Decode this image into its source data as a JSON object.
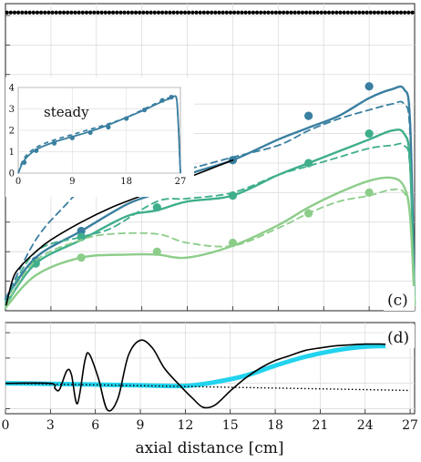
{
  "chart_data": [
    {
      "panel": "c",
      "type": "line",
      "panel_label": "(c)",
      "xlim": [
        0,
        27
      ],
      "ylim": [
        0,
        5.2
      ],
      "grid": true,
      "y_tick_labels_visible": false,
      "colors": {
        "dark_blue": "#3a7fa0",
        "green": "#3fae8c",
        "light_green": "#8dcd8a",
        "black": "#000000"
      },
      "series": [
        {
          "color": "dark_blue",
          "style": "solid",
          "x": [
            0,
            2,
            5,
            8,
            10,
            12,
            15,
            18,
            20,
            22,
            24,
            25.5,
            26.3,
            26.7,
            27
          ],
          "y": [
            0.2,
            0.9,
            1.35,
            1.8,
            2.0,
            2.3,
            2.55,
            2.9,
            3.1,
            3.3,
            3.6,
            3.75,
            3.75,
            3.2,
            0.1
          ]
        },
        {
          "color": "dark_blue",
          "style": "dashed",
          "x": [
            0,
            2,
            4,
            6,
            8,
            10,
            12,
            15,
            18,
            20,
            22,
            24,
            25.5,
            26.3,
            26.7,
            27
          ],
          "y": [
            0.2,
            1.2,
            1.8,
            2.3,
            2.45,
            2.35,
            2.4,
            2.6,
            2.8,
            3.05,
            3.25,
            3.4,
            3.5,
            3.5,
            3.0,
            0.1
          ]
        },
        {
          "color": "dark_blue",
          "style": "markers",
          "x": [
            2,
            5,
            10,
            15,
            20,
            24
          ],
          "y": [
            0.85,
            1.35,
            2.0,
            2.55,
            3.3,
            3.8
          ]
        },
        {
          "color": "green",
          "style": "solid",
          "x": [
            0,
            2,
            5,
            8,
            10,
            12,
            15,
            18,
            20,
            22,
            24,
            25.5,
            26.3,
            26.7,
            27
          ],
          "y": [
            0.1,
            0.8,
            1.2,
            1.6,
            1.7,
            1.85,
            1.95,
            2.3,
            2.5,
            2.7,
            2.9,
            3.05,
            3.0,
            2.5,
            0.1
          ]
        },
        {
          "color": "green",
          "style": "dashed",
          "x": [
            0,
            2,
            5,
            7,
            10,
            12,
            15,
            18,
            20,
            22,
            24,
            25.5,
            26.3,
            26.7,
            27
          ],
          "y": [
            0.15,
            1.0,
            1.25,
            1.4,
            1.85,
            1.9,
            2.0,
            2.3,
            2.45,
            2.6,
            2.75,
            2.8,
            2.8,
            2.4,
            0.1
          ]
        },
        {
          "color": "green",
          "style": "markers",
          "x": [
            2,
            5,
            10,
            15,
            20,
            24
          ],
          "y": [
            0.8,
            1.25,
            1.75,
            1.95,
            2.5,
            3.0
          ]
        },
        {
          "color": "light_green",
          "style": "solid",
          "x": [
            0,
            2,
            5,
            8,
            10,
            12,
            15,
            18,
            20,
            22,
            24,
            25.5,
            26.3,
            26.7,
            27
          ],
          "y": [
            0.05,
            0.6,
            0.9,
            0.95,
            0.95,
            0.9,
            1.1,
            1.45,
            1.75,
            2.0,
            2.2,
            2.25,
            2.1,
            1.6,
            0.1
          ]
        },
        {
          "color": "light_green",
          "style": "dashed",
          "x": [
            0,
            2,
            5,
            7,
            10,
            12,
            15,
            18,
            20,
            22,
            24,
            25.5,
            26.3,
            26.7,
            27
          ],
          "y": [
            0.1,
            0.85,
            1.2,
            1.3,
            1.3,
            1.15,
            1.1,
            1.4,
            1.65,
            1.85,
            1.95,
            2.05,
            2.0,
            1.6,
            0.1
          ]
        },
        {
          "color": "light_green",
          "style": "markers",
          "x": [
            5,
            10,
            15,
            20,
            24
          ],
          "y": [
            0.9,
            1.0,
            1.15,
            1.65,
            2.0
          ]
        },
        {
          "color": "black",
          "style": "solid",
          "x": [
            0.05,
            0.5,
            1,
            2,
            3,
            5,
            7,
            9,
            11,
            13,
            15
          ],
          "y": [
            0.1,
            0.55,
            0.75,
            1.0,
            1.2,
            1.5,
            1.75,
            1.95,
            2.15,
            2.35,
            2.55
          ]
        }
      ],
      "top_dotted_line": {
        "y": 5.05,
        "x_spacing": 0.25
      },
      "inset": {
        "title": "steady",
        "type": "line",
        "xlim": [
          0,
          27
        ],
        "ylim": [
          0,
          4
        ],
        "x_ticks": [
          "0",
          "9",
          "18",
          "27"
        ],
        "y_ticks": [
          "0",
          "1",
          "2",
          "3",
          "4"
        ],
        "series": [
          {
            "color": "dark_blue",
            "style": "solid",
            "x": [
              0,
              1,
              3,
              6,
              9,
              12,
              15,
              18,
              21,
              24,
              25.5,
              26,
              26.4,
              26.7,
              27
            ],
            "y": [
              0,
              0.6,
              1.1,
              1.45,
              1.7,
              1.95,
              2.25,
              2.6,
              2.95,
              3.35,
              3.5,
              3.6,
              3.4,
              2.0,
              0
            ]
          },
          {
            "color": "dark_blue",
            "style": "dashed",
            "x": [
              0,
              1,
              3,
              6,
              9,
              12,
              15,
              18,
              21,
              24,
              25.5,
              26,
              26.4,
              26.7,
              27
            ],
            "y": [
              0,
              0.7,
              1.2,
              1.55,
              1.8,
              2.05,
              2.3,
              2.6,
              3.0,
              3.4,
              3.55,
              3.6,
              3.4,
              2.0,
              0
            ]
          },
          {
            "color": "dark_blue",
            "style": "markers",
            "x": [
              1,
              3,
              6,
              9,
              12,
              15,
              18,
              21,
              24,
              25.5
            ],
            "y": [
              0.5,
              1.05,
              1.4,
              1.65,
              1.9,
              2.15,
              2.55,
              2.95,
              3.4,
              3.55
            ]
          }
        ]
      }
    },
    {
      "panel": "d",
      "type": "line",
      "panel_label": "(d)",
      "xlabel": "axial distance [cm]",
      "xlim": [
        0,
        27.3
      ],
      "ylim": [
        -1.2,
        2.4
      ],
      "grid": true,
      "x_ticks": [
        "0",
        "3",
        "6",
        "9",
        "12",
        "15",
        "18",
        "21",
        "24",
        "27"
      ],
      "y_tick_labels_visible": false,
      "colors": {
        "cyan": "#22d3ee",
        "black": "#000000"
      },
      "series": [
        {
          "color": "cyan",
          "style": "thick",
          "x": [
            0,
            3,
            6,
            9,
            12,
            14,
            16,
            18,
            20,
            22,
            24,
            26,
            27
          ],
          "y": [
            0,
            -0.02,
            -0.05,
            -0.08,
            -0.1,
            0.05,
            0.3,
            0.7,
            1.05,
            1.3,
            1.45,
            1.48,
            1.48
          ]
        },
        {
          "color": "black",
          "style": "dotted",
          "x": [
            0,
            27
          ],
          "y": [
            0,
            -0.28
          ]
        },
        {
          "color": "black",
          "style": "solid",
          "x": [
            0,
            3,
            3.3,
            3.6,
            4.1,
            4.4,
            4.8,
            5.3,
            5.6,
            6.2,
            6.8,
            7.5,
            8.2,
            9,
            9.8,
            10.6,
            11.5,
            12.5,
            13.2,
            14,
            15,
            16,
            17,
            18,
            19,
            20,
            21,
            22,
            23,
            24,
            25,
            26,
            27
          ],
          "y": [
            0,
            0.0,
            -0.2,
            -0.25,
            0.5,
            0.35,
            -0.8,
            0.9,
            1.15,
            0.2,
            -1.05,
            -0.6,
            1.1,
            1.7,
            1.4,
            0.6,
            0.0,
            -0.6,
            -0.95,
            -0.85,
            -0.3,
            0.2,
            0.6,
            0.9,
            1.1,
            1.3,
            1.4,
            1.48,
            1.52,
            1.55,
            1.55,
            1.53,
            1.5
          ]
        }
      ]
    }
  ]
}
